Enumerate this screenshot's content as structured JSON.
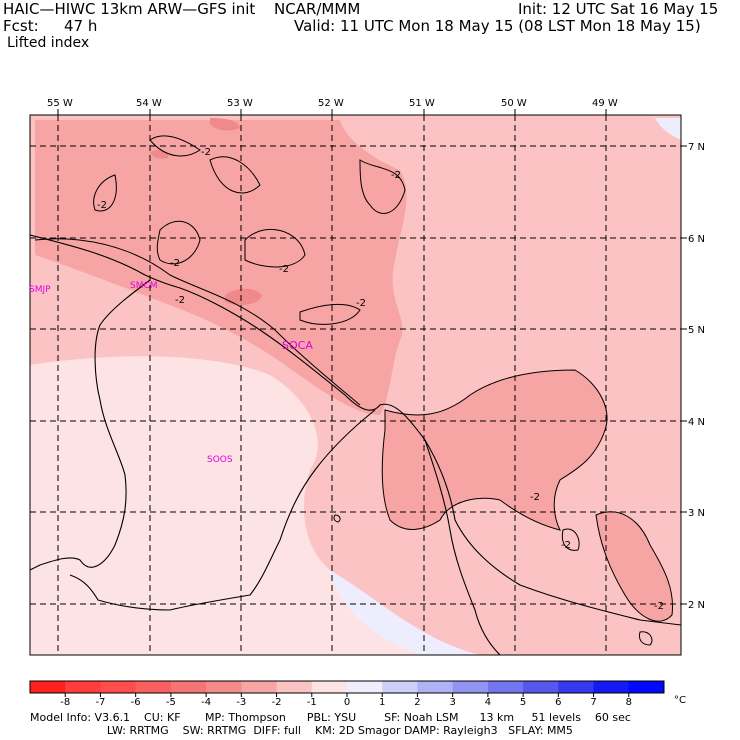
{
  "header": {
    "title": "HAIC—HIWC 13km ARW—GFS init",
    "source": "NCAR/MMM",
    "init": "Init: 12 UTC Sat 16 May 15",
    "fcst_label": "Fcst:",
    "fcst_value": "47 h",
    "valid": "Valid: 11 UTC Mon 18 May 15 (08 LST Mon 18 May 15)",
    "field": "Lifted index"
  },
  "map": {
    "lon_labels": [
      "55 W",
      "54 W",
      "53 W",
      "52 W",
      "51 W",
      "50 W",
      "49 W"
    ],
    "lat_labels": [
      "7 N",
      "6 N",
      "5 N",
      "4 N",
      "3 N",
      "2 N"
    ],
    "stations": [
      "SMJP",
      "SMCM",
      "SOCA",
      "SOOS"
    ],
    "contour_labels": [
      "-2",
      "-2",
      "-2",
      "-2",
      "-2",
      "-2",
      "-2",
      "-2",
      "-2",
      "-2",
      "-2",
      "-2"
    ],
    "colors": {
      "neg5": "#f08a8a",
      "neg3": "#f7a4a4",
      "neg2": "#fbc3c3",
      "neg1": "#fde3e3",
      "pos1": "#ededfd",
      "pos2": "#cccdf8",
      "station": "#e000e0"
    }
  },
  "colorbar": {
    "ticks": [
      "-8",
      "-7",
      "-6",
      "-5",
      "-4",
      "-3",
      "-2",
      "-1",
      "0",
      "1",
      "2",
      "3",
      "4",
      "5",
      "6",
      "7",
      "8"
    ],
    "unit": "°C",
    "colors": [
      "#ff2020",
      "#ff3d3d",
      "#ff4d4d",
      "#f86060",
      "#f57575",
      "#f58a8a",
      "#f8a5a5",
      "#fbc4c4",
      "#fde3e3",
      "#eeeefd",
      "#cfd0fa",
      "#b0b2f6",
      "#9294f2",
      "#7376ee",
      "#5558ea",
      "#3539ee",
      "#1519f2",
      "#0008ff"
    ]
  },
  "footer": {
    "line1": "Model Info: V3.6.1    CU: KF       MP: Thompson      PBL: YSU        SF: Noah LSM      13 km     51 levels    60 sec",
    "line2": "                      LW: RRTMG    SW: RRTMG  DIFF: full    KM: 2D Smagor DAMP: Rayleigh3   SFLAY: MM5"
  }
}
